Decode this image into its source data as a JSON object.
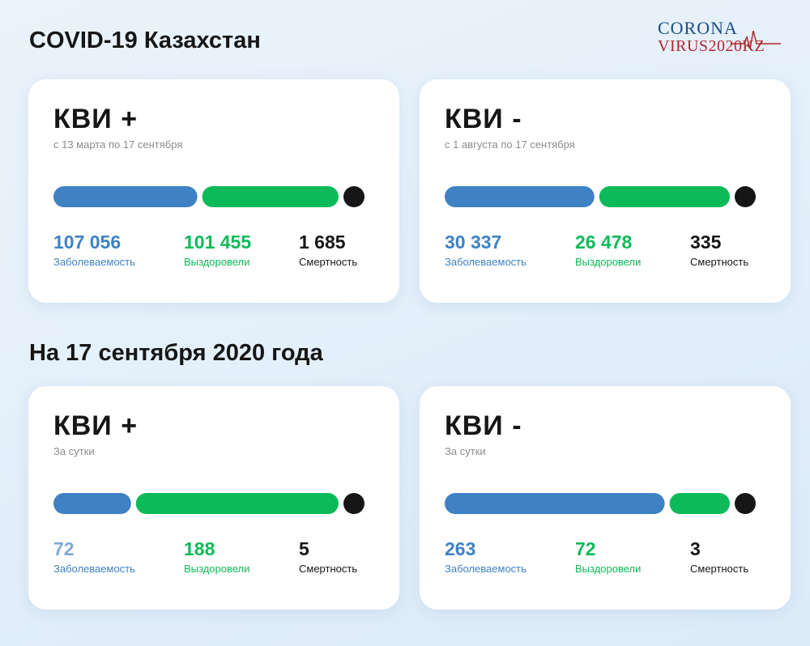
{
  "page": {
    "heading": "COVID-19 Казахстан",
    "subheading": "На 17 сентября 2020 года"
  },
  "logo": {
    "line1": "CORONA",
    "line2": "VIRUS2020KZ"
  },
  "colors": {
    "cases": "#3e82c4",
    "recovered": "#0dba59",
    "deaths": "#161616",
    "cases_today_pos": "#7fa9d4",
    "brand_blue": "#1e4f86",
    "brand_red": "#b3262d"
  },
  "cards": [
    {
      "title": "КВИ +",
      "subtitle": "с 13 марта по 17 сентября",
      "stats": [
        {
          "value": "107 056",
          "label": "Заболеваемость"
        },
        {
          "value": "101 455",
          "label": "Выздоровели"
        },
        {
          "value": "1 685",
          "label": "Смертность"
        }
      ]
    },
    {
      "title": "КВИ -",
      "subtitle": "с 1 августа по 17 сентября",
      "stats": [
        {
          "value": "30 337",
          "label": "Заболеваемость"
        },
        {
          "value": "26 478",
          "label": "Выздоровели"
        },
        {
          "value": "335",
          "label": "Смертность"
        }
      ]
    },
    {
      "title": "КВИ +",
      "subtitle": "За сутки",
      "stats": [
        {
          "value": "72",
          "label": "Заболеваемость"
        },
        {
          "value": "188",
          "label": "Выздоровели"
        },
        {
          "value": "5",
          "label": "Смертность"
        }
      ]
    },
    {
      "title": "КВИ -",
      "subtitle": "За сутки",
      "stats": [
        {
          "value": "263",
          "label": "Заболеваемость"
        },
        {
          "value": "72",
          "label": "Выздоровели"
        },
        {
          "value": "3",
          "label": "Смертность"
        }
      ]
    }
  ],
  "chart_data": [
    {
      "type": "bar",
      "title": "КВИ +",
      "subtitle": "с 13 марта по 17 сентября",
      "categories": [
        "Заболеваемость",
        "Выздоровели",
        "Смертность"
      ],
      "values": [
        107056,
        101455,
        1685
      ],
      "colors": [
        "#3e82c4",
        "#0dba59",
        "#161616"
      ]
    },
    {
      "type": "bar",
      "title": "КВИ -",
      "subtitle": "с 1 августа по 17 сентября",
      "categories": [
        "Заболеваемость",
        "Выздоровели",
        "Смертность"
      ],
      "values": [
        30337,
        26478,
        335
      ],
      "colors": [
        "#3e82c4",
        "#0dba59",
        "#161616"
      ]
    },
    {
      "type": "bar",
      "title": "КВИ +",
      "subtitle": "За сутки",
      "categories": [
        "Заболеваемость",
        "Выздоровели",
        "Смертность"
      ],
      "values": [
        72,
        188,
        5
      ],
      "colors": [
        "#3e82c4",
        "#0dba59",
        "#161616"
      ]
    },
    {
      "type": "bar",
      "title": "КВИ -",
      "subtitle": "За сутки",
      "categories": [
        "Заболеваемость",
        "Выздоровели",
        "Смертность"
      ],
      "values": [
        263,
        72,
        3
      ],
      "colors": [
        "#3e82c4",
        "#0dba59",
        "#161616"
      ]
    }
  ]
}
